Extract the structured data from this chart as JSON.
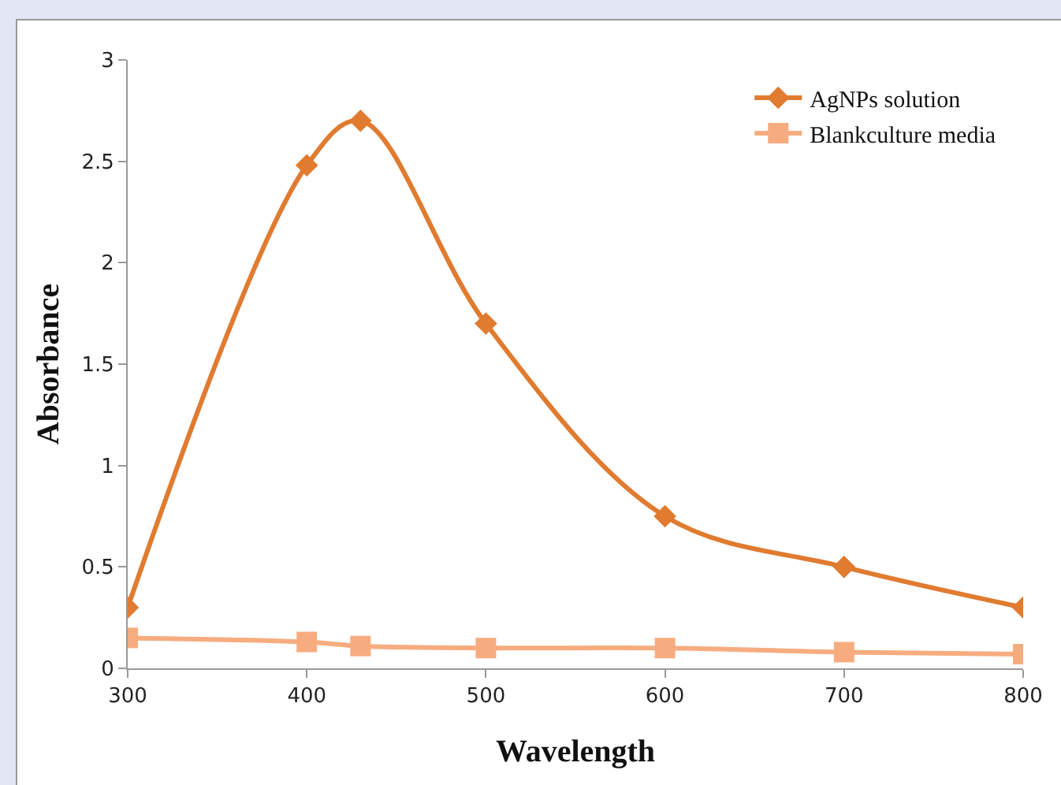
{
  "chart_data": {
    "type": "line",
    "xlabel": "Wavelength",
    "ylabel": "Absorbance",
    "x": [
      300,
      400,
      430,
      500,
      600,
      700,
      800
    ],
    "series": [
      {
        "name": "AgNPs solution",
        "color": "#e07b30",
        "marker": "diamond",
        "values": [
          0.3,
          2.48,
          2.7,
          1.7,
          0.75,
          0.5,
          0.3
        ]
      },
      {
        "name": "Blankculture media",
        "color": "#f7ac80",
        "marker": "square",
        "values": [
          0.15,
          0.13,
          0.11,
          0.1,
          0.1,
          0.08,
          0.07
        ]
      }
    ],
    "xlim": [
      300,
      800
    ],
    "xticks": [
      300,
      400,
      500,
      600,
      700,
      800
    ],
    "ylim": [
      0,
      3
    ],
    "yticks": [
      0,
      0.5,
      1,
      1.5,
      2,
      2.5,
      3
    ],
    "grid": false,
    "legend": "top right",
    "line_style": "solid"
  }
}
